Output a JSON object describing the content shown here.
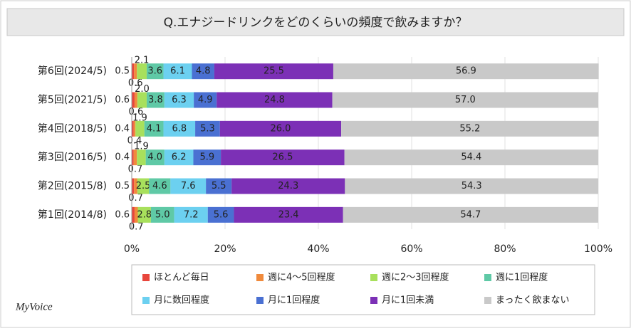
{
  "chart_data": {
    "type": "stacked-bar-horizontal",
    "title": "Q.エナジードリンクをどのくらいの頻度で飲みますか？",
    "logo": "MyVoice",
    "categories": [
      "第6回(2024/5)",
      "第5回(2021/5)",
      "第4回(2018/5)",
      "第3回(2016/5)",
      "第2回(2015/8)",
      "第1回(2014/8)"
    ],
    "series": [
      {
        "name": "ほとんど毎日",
        "color": "#e8463c",
        "values": [
          0.5,
          0.6,
          0.4,
          0.4,
          0.5,
          0.6
        ],
        "value_labels": [
          "0.5",
          "0.6",
          "0.4",
          "0.4",
          "0.5",
          "0.6"
        ]
      },
      {
        "name": "週に4～5回程度",
        "color": "#f08a3c",
        "values": [
          0.6,
          0.6,
          0.4,
          0.7,
          0.7,
          0.7
        ],
        "value_labels": [
          "0.6",
          "0.6",
          "0.4",
          "0.7",
          "0.7",
          "0.7"
        ]
      },
      {
        "name": "週に2～3回程度",
        "color": "#a8e05c",
        "values": [
          2.1,
          2.0,
          1.9,
          1.9,
          2.5,
          2.8
        ],
        "value_labels": [
          "2.1",
          "2.0",
          "1.9",
          "1.9",
          "2.5",
          "2.8"
        ]
      },
      {
        "name": "週に1回程度",
        "color": "#5fc9a6",
        "values": [
          3.6,
          3.8,
          4.1,
          4.0,
          4.6,
          5.0
        ],
        "value_labels": [
          "3.6",
          "3.8",
          "4.1",
          "4.0",
          "4.6",
          "5.0"
        ]
      },
      {
        "name": "月に数回程度",
        "color": "#6cd0f0",
        "values": [
          6.1,
          6.3,
          6.8,
          6.2,
          7.6,
          7.2
        ],
        "value_labels": [
          "6.1",
          "6.3",
          "6.8",
          "6.2",
          "7.6",
          "7.2"
        ]
      },
      {
        "name": "月に1回程度",
        "color": "#4a70d2",
        "values": [
          4.8,
          4.9,
          5.3,
          5.9,
          5.5,
          5.6
        ],
        "value_labels": [
          "4.8",
          "4.9",
          "5.3",
          "5.9",
          "5.5",
          "5.6"
        ]
      },
      {
        "name": "月に1回未満",
        "color": "#7c30b6",
        "values": [
          25.5,
          24.8,
          26.0,
          26.5,
          24.3,
          23.4
        ],
        "value_labels": [
          "25.5",
          "24.8",
          "26.0",
          "26.5",
          "24.3",
          "23.4"
        ]
      },
      {
        "name": "まったく飲まない",
        "color": "#c9c9c9",
        "values": [
          56.9,
          57.0,
          55.2,
          54.4,
          54.3,
          54.7
        ],
        "value_labels": [
          "56.9",
          "57.0",
          "55.2",
          "54.4",
          "54.3",
          "54.7"
        ]
      }
    ],
    "xlim": [
      0,
      100
    ],
    "xticks": [
      {
        "value": 0,
        "label": "0%"
      },
      {
        "value": 20,
        "label": "20%"
      },
      {
        "value": 40,
        "label": "40%"
      },
      {
        "value": 60,
        "label": "60%"
      },
      {
        "value": 80,
        "label": "80%"
      },
      {
        "value": 100,
        "label": "100%"
      }
    ],
    "grid": true
  }
}
